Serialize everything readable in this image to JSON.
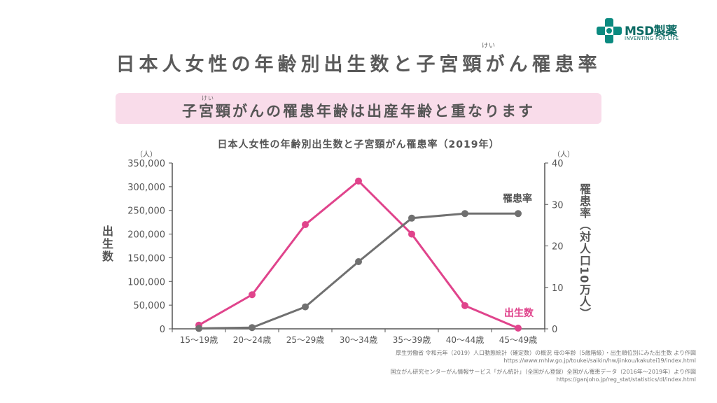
{
  "logo": {
    "brand": "MSD製薬",
    "tagline": "INVENTING FOR LIFE"
  },
  "header": {
    "title": "日本人女性の年齢別出生数と子宮頸がん罹患率",
    "ruby": "けい"
  },
  "banner": {
    "text": "子宮頸がんの罹患年齢は出産年齢と重なります",
    "ruby": "けい"
  },
  "sources": [
    "厚生労働省 令和元年（2019）人口動態統計（確定数）の概況 母の年齢（5歳階級）・出生順位別にみた出生数 より作図",
    "https://www.mhlw.go.jp/toukei/saikin/hw/jinkou/kakutei19/index.html",
    "国立がん研究センターがん情報サービス「がん統計」（全国がん登録）全国がん罹患データ（2016年～2019年）より作図",
    "https://ganjoho.jp/reg_stat/statistics/dl/index.html"
  ],
  "chart_data": {
    "type": "line",
    "title": "日本人女性の年齢別出生数と子宮頸がん罹患率（2019年）",
    "categories": [
      "15～19歳",
      "20～24歳",
      "25～29歳",
      "30～34歳",
      "35～39歳",
      "40～44歳",
      "45～49歳"
    ],
    "ylabel_left": "出生数",
    "ylabel_right": "罹患率（対人口10万人）",
    "unit_left": "（人）",
    "unit_right": "（人）",
    "ylim_left": [
      0,
      350000
    ],
    "yticks_left": [
      "0",
      "50,000",
      "100,000",
      "150,000",
      "200,000",
      "250,000",
      "300,000",
      "350,000"
    ],
    "ylim_right": [
      0,
      40
    ],
    "yticks_right": [
      "0",
      "10",
      "20",
      "30",
      "40"
    ],
    "grid": false,
    "series": [
      {
        "name": "出生数",
        "axis": "left",
        "color": "#e0448c",
        "values": [
          7800,
          72000,
          220000,
          312000,
          200000,
          49000,
          1500
        ]
      },
      {
        "name": "罹患率",
        "axis": "right",
        "color": "#707070",
        "values": [
          0.1,
          0.3,
          5.3,
          16.2,
          26.7,
          27.8,
          27.8
        ]
      }
    ]
  }
}
